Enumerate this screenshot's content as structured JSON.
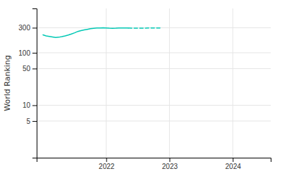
{
  "chart_data": {
    "type": "line",
    "ylabel": "World Ranking",
    "x": [
      2021.0,
      2021.05,
      2021.1,
      2021.15,
      2021.2,
      2021.25,
      2021.3,
      2021.35,
      2021.4,
      2021.45,
      2021.5,
      2021.55,
      2021.6,
      2021.65,
      2021.7,
      2021.75,
      2021.8,
      2021.85,
      2021.9,
      2021.95,
      2022.0,
      2022.05,
      2022.1,
      2022.15,
      2022.2,
      2022.25,
      2022.3,
      2022.35,
      2022.5,
      2022.65,
      2022.75,
      2022.85
    ],
    "series": [
      {
        "color": "#00c8b4",
        "line_style": "solid",
        "values": [
          220,
          210,
          205,
          200,
          195,
          198,
          203,
          210,
          218,
          228,
          240,
          255,
          265,
          272,
          280,
          288,
          293,
          296,
          298,
          299,
          298,
          295,
          293,
          295,
          298,
          298,
          297,
          296,
          null,
          null,
          null,
          null
        ]
      },
      {
        "color": "#00c8b4",
        "line_style": "dashed",
        "values": [
          null,
          null,
          null,
          null,
          null,
          null,
          null,
          null,
          null,
          null,
          null,
          null,
          null,
          null,
          null,
          null,
          null,
          null,
          null,
          null,
          null,
          null,
          null,
          null,
          null,
          null,
          null,
          296,
          295,
          296,
          297,
          296
        ]
      }
    ],
    "xlim": [
      2020.9,
      2024.6
    ],
    "ylim": [
      1,
      700
    ],
    "xticks": [
      2022,
      2023,
      2024
    ],
    "yticks": [
      5,
      10,
      50,
      100,
      300
    ],
    "log": "y",
    "grid": true
  }
}
